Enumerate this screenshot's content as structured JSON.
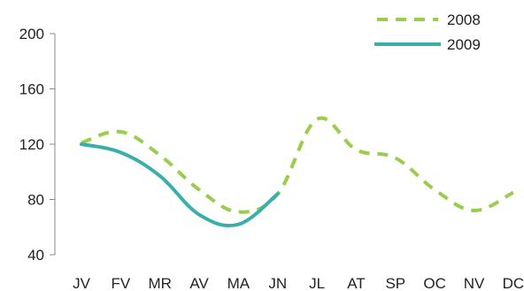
{
  "chart_data": {
    "type": "line",
    "categories": [
      "JV",
      "FV",
      "MR",
      "AV",
      "MA",
      "JN",
      "JL",
      "AT",
      "SP",
      "OC",
      "NV",
      "DC"
    ],
    "series": [
      {
        "name": "2008",
        "values": [
          121,
          129,
          112,
          87,
          71,
          84,
          138,
          116,
          110,
          87,
          72,
          85
        ],
        "color": "#9ACD4E",
        "style": "dashed"
      },
      {
        "name": "2009",
        "values": [
          120,
          114,
          97,
          69,
          62,
          84,
          null,
          null,
          null,
          null,
          null,
          null
        ],
        "color": "#3AAFA9",
        "style": "solid"
      }
    ],
    "ylim": [
      40,
      200
    ],
    "yticks": [
      "40",
      "80",
      "120",
      "160",
      "200"
    ],
    "title": "",
    "xlabel": "",
    "ylabel": "",
    "grid": false,
    "legend_position": "top-right"
  }
}
